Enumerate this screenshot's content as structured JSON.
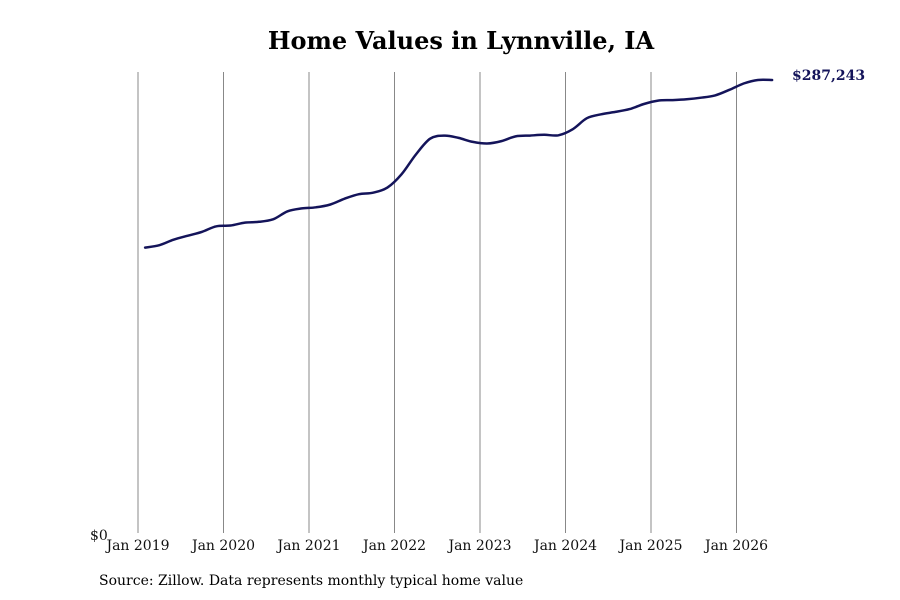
{
  "chart_data": {
    "type": "line",
    "title": "Home Values in Lynnville, IA",
    "source": "Source: Zillow. Data represents monthly typical home value",
    "y_zero_label": "$0",
    "end_label": "$287,243",
    "ylim": [
      0,
      300000
    ],
    "grid": "vertical",
    "line_color": "#14145a",
    "grid_color": "#888888",
    "ticks": [
      {
        "label": "Jan 2019",
        "value": 2019.0
      },
      {
        "label": "Jan 2020",
        "value": 2020.0
      },
      {
        "label": "Jan 2021",
        "value": 2021.0
      },
      {
        "label": "Jan 2022",
        "value": 2022.0
      },
      {
        "label": "Jan 2023",
        "value": 2023.0
      },
      {
        "label": "Jan 2024",
        "value": 2024.0
      },
      {
        "label": "Jan 2025",
        "value": 2025.0
      },
      {
        "label": "Jan 2026",
        "value": 2026.0
      }
    ],
    "series": [
      {
        "points": [
          [
            "2019-02",
            181000
          ],
          [
            "2019-04",
            182500
          ],
          [
            "2019-06",
            186000
          ],
          [
            "2019-08",
            188500
          ],
          [
            "2019-10",
            191000
          ],
          [
            "2019-12",
            194500
          ],
          [
            "2020-02",
            195000
          ],
          [
            "2020-04",
            196800
          ],
          [
            "2020-06",
            197300
          ],
          [
            "2020-08",
            199000
          ],
          [
            "2020-10",
            204000
          ],
          [
            "2020-12",
            205800
          ],
          [
            "2021-02",
            206500
          ],
          [
            "2021-04",
            208300
          ],
          [
            "2021-06",
            212000
          ],
          [
            "2021-08",
            214800
          ],
          [
            "2021-10",
            215800
          ],
          [
            "2021-12",
            219000
          ],
          [
            "2022-02",
            227500
          ],
          [
            "2022-04",
            240000
          ],
          [
            "2022-06",
            250000
          ],
          [
            "2022-08",
            252000
          ],
          [
            "2022-10",
            250500
          ],
          [
            "2022-12",
            248000
          ],
          [
            "2023-02",
            247000
          ],
          [
            "2023-04",
            248500
          ],
          [
            "2023-06",
            251500
          ],
          [
            "2023-08",
            252000
          ],
          [
            "2023-10",
            252500
          ],
          [
            "2023-12",
            252200
          ],
          [
            "2024-02",
            256000
          ],
          [
            "2024-04",
            263000
          ],
          [
            "2024-06",
            265500
          ],
          [
            "2024-08",
            267000
          ],
          [
            "2024-10",
            268800
          ],
          [
            "2024-12",
            272000
          ],
          [
            "2025-02",
            274200
          ],
          [
            "2025-04",
            274500
          ],
          [
            "2025-06",
            275000
          ],
          [
            "2025-08",
            276000
          ],
          [
            "2025-10",
            277500
          ],
          [
            "2025-12",
            281000
          ],
          [
            "2026-02",
            285000
          ],
          [
            "2026-04",
            287243
          ],
          [
            "2026-06",
            287243
          ]
        ]
      }
    ]
  }
}
